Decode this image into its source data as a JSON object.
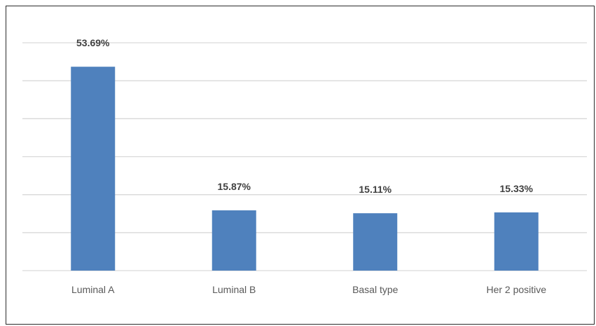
{
  "chart_data": {
    "type": "bar",
    "categories": [
      "Luminal A",
      "Luminal B",
      "Basal type",
      "Her 2 positive"
    ],
    "values": [
      53.69,
      15.87,
      15.11,
      15.33
    ],
    "value_labels": [
      "53.69%",
      "15.87%",
      "15.11%",
      "15.33%"
    ],
    "title": "",
    "xlabel": "",
    "ylabel": "",
    "ylim": [
      0,
      60
    ],
    "grid": true,
    "legend": "none",
    "bar_color": "#4f81bd",
    "grid_color": "#d9d9d9"
  }
}
